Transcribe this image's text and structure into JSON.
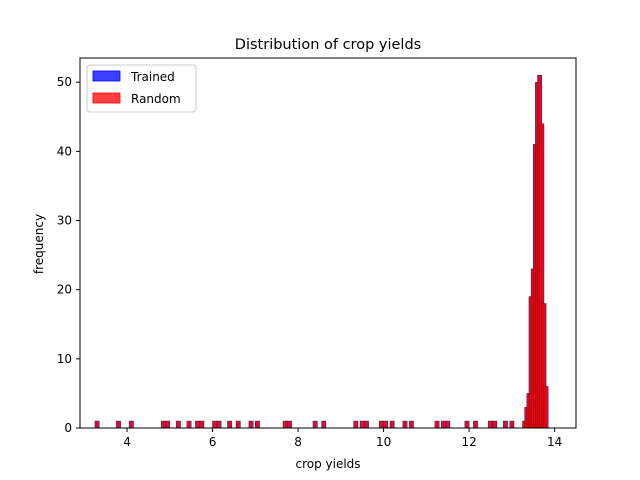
{
  "chart_data": {
    "type": "bar",
    "subtype": "histogram",
    "title": "Distribution of crop yields",
    "xlabel": "crop yields",
    "ylabel": "frequency",
    "xlim": [
      2.9,
      14.5
    ],
    "ylim": [
      0,
      53.5
    ],
    "xticks": [
      4,
      6,
      8,
      10,
      12,
      14
    ],
    "yticks": [
      0,
      10,
      20,
      30,
      40,
      50
    ],
    "grid": false,
    "legend_position": "top-left",
    "bin_width": 0.1,
    "series": [
      {
        "name": "Trained",
        "color": "#0000ff",
        "alpha": 0.75,
        "bins": [
          [
            3.3,
            1
          ],
          [
            3.8,
            1
          ],
          [
            4.1,
            1
          ],
          [
            4.85,
            1
          ],
          [
            4.95,
            1
          ],
          [
            5.2,
            1
          ],
          [
            5.45,
            1
          ],
          [
            5.65,
            1
          ],
          [
            5.75,
            1
          ],
          [
            6.05,
            1
          ],
          [
            6.15,
            1
          ],
          [
            6.4,
            1
          ],
          [
            6.6,
            1
          ],
          [
            6.9,
            1
          ],
          [
            7.05,
            1
          ],
          [
            7.7,
            1
          ],
          [
            7.8,
            1
          ],
          [
            8.4,
            1
          ],
          [
            8.6,
            1
          ],
          [
            9.35,
            1
          ],
          [
            9.5,
            1
          ],
          [
            9.6,
            1
          ],
          [
            9.95,
            1
          ],
          [
            10.05,
            1
          ],
          [
            10.2,
            1
          ],
          [
            10.5,
            1
          ],
          [
            10.65,
            1
          ],
          [
            11.25,
            1
          ],
          [
            11.4,
            1
          ],
          [
            11.5,
            1
          ],
          [
            11.95,
            1
          ],
          [
            12.15,
            1
          ],
          [
            12.5,
            1
          ],
          [
            12.6,
            1
          ],
          [
            12.85,
            1
          ],
          [
            13.0,
            1
          ],
          [
            13.3,
            1
          ],
          [
            13.35,
            3
          ],
          [
            13.4,
            5
          ],
          [
            13.45,
            19
          ],
          [
            13.5,
            23
          ],
          [
            13.55,
            41
          ],
          [
            13.6,
            50
          ],
          [
            13.65,
            51
          ],
          [
            13.7,
            44
          ],
          [
            13.75,
            18
          ],
          [
            13.8,
            6
          ]
        ]
      },
      {
        "name": "Random",
        "color": "#ff0000",
        "alpha": 0.75,
        "bins": [
          [
            3.3,
            1
          ],
          [
            3.8,
            1
          ],
          [
            4.1,
            1
          ],
          [
            4.85,
            1
          ],
          [
            4.95,
            1
          ],
          [
            5.2,
            1
          ],
          [
            5.45,
            1
          ],
          [
            5.65,
            1
          ],
          [
            5.75,
            1
          ],
          [
            6.05,
            1
          ],
          [
            6.15,
            1
          ],
          [
            6.4,
            1
          ],
          [
            6.6,
            1
          ],
          [
            6.9,
            1
          ],
          [
            7.05,
            1
          ],
          [
            7.7,
            1
          ],
          [
            7.8,
            1
          ],
          [
            8.4,
            1
          ],
          [
            8.6,
            1
          ],
          [
            9.35,
            1
          ],
          [
            9.5,
            1
          ],
          [
            9.6,
            1
          ],
          [
            9.95,
            1
          ],
          [
            10.05,
            1
          ],
          [
            10.2,
            1
          ],
          [
            10.5,
            1
          ],
          [
            10.65,
            1
          ],
          [
            11.25,
            1
          ],
          [
            11.4,
            1
          ],
          [
            11.5,
            1
          ],
          [
            11.95,
            1
          ],
          [
            12.15,
            1
          ],
          [
            12.5,
            1
          ],
          [
            12.6,
            1
          ],
          [
            12.85,
            1
          ],
          [
            13.0,
            1
          ],
          [
            13.3,
            1
          ],
          [
            13.35,
            3
          ],
          [
            13.4,
            5
          ],
          [
            13.45,
            19
          ],
          [
            13.5,
            23
          ],
          [
            13.55,
            41
          ],
          [
            13.6,
            50
          ],
          [
            13.65,
            51
          ],
          [
            13.7,
            44
          ],
          [
            13.75,
            18
          ],
          [
            13.8,
            6
          ]
        ]
      }
    ]
  }
}
